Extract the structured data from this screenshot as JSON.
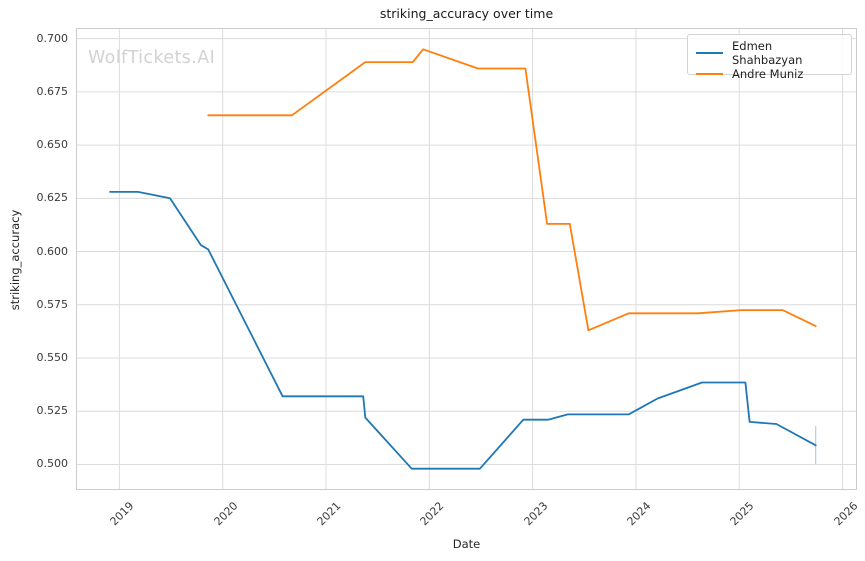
{
  "title": "striking_accuracy over time",
  "watermark": "WolfTickets.AI",
  "axes": {
    "xlabel": "Date",
    "ylabel": "striking_accuracy"
  },
  "chart_data": {
    "type": "line",
    "title": "striking_accuracy over time",
    "xlabel": "Date",
    "ylabel": "striking_accuracy",
    "xlim": [
      2018.58,
      2026.14
    ],
    "ylim": [
      0.488,
      0.705
    ],
    "xticks": [
      2019,
      2020,
      2021,
      2022,
      2023,
      2024,
      2025,
      2026
    ],
    "yticks": [
      "0.500",
      "0.525",
      "0.550",
      "0.575",
      "0.600",
      "0.625",
      "0.650",
      "0.675",
      "0.700"
    ],
    "grid": true,
    "grid_color": "#dcdcdc",
    "border_color": "#cccccc",
    "legend_position": "upper right",
    "series": [
      {
        "name": "Edmen Shahbazyan",
        "color": "#1f77b4",
        "points": [
          [
            2018.91,
            0.628
          ],
          [
            2019.18,
            0.628
          ],
          [
            2019.49,
            0.625
          ],
          [
            2019.79,
            0.603
          ],
          [
            2019.86,
            0.601
          ],
          [
            2020.58,
            0.532
          ],
          [
            2021.36,
            0.532
          ],
          [
            2021.38,
            0.522
          ],
          [
            2021.83,
            0.498
          ],
          [
            2022.49,
            0.498
          ],
          [
            2022.91,
            0.521
          ],
          [
            2023.15,
            0.521
          ],
          [
            2023.34,
            0.5235
          ],
          [
            2023.93,
            0.5235
          ],
          [
            2024.21,
            0.531
          ],
          [
            2024.64,
            0.5385
          ],
          [
            2025.06,
            0.5385
          ],
          [
            2025.1,
            0.52
          ],
          [
            2025.36,
            0.519
          ],
          [
            2025.74,
            0.509
          ]
        ]
      },
      {
        "name": "Andre Muniz",
        "color": "#ff7f0e",
        "points": [
          [
            2019.86,
            0.664
          ],
          [
            2020.67,
            0.664
          ],
          [
            2021.38,
            0.689
          ],
          [
            2021.84,
            0.689
          ],
          [
            2021.94,
            0.695
          ],
          [
            2022.47,
            0.686
          ],
          [
            2022.93,
            0.686
          ],
          [
            2023.14,
            0.613
          ],
          [
            2023.36,
            0.613
          ],
          [
            2023.54,
            0.563
          ],
          [
            2023.93,
            0.571
          ],
          [
            2024.6,
            0.571
          ],
          [
            2025.02,
            0.5725
          ],
          [
            2025.42,
            0.5725
          ],
          [
            2025.74,
            0.565
          ]
        ]
      }
    ],
    "error_bar": {
      "series": "Edmen Shahbazyan",
      "x": 2025.74,
      "low": 0.5,
      "high": 0.518,
      "color": "#abd0e8"
    }
  }
}
